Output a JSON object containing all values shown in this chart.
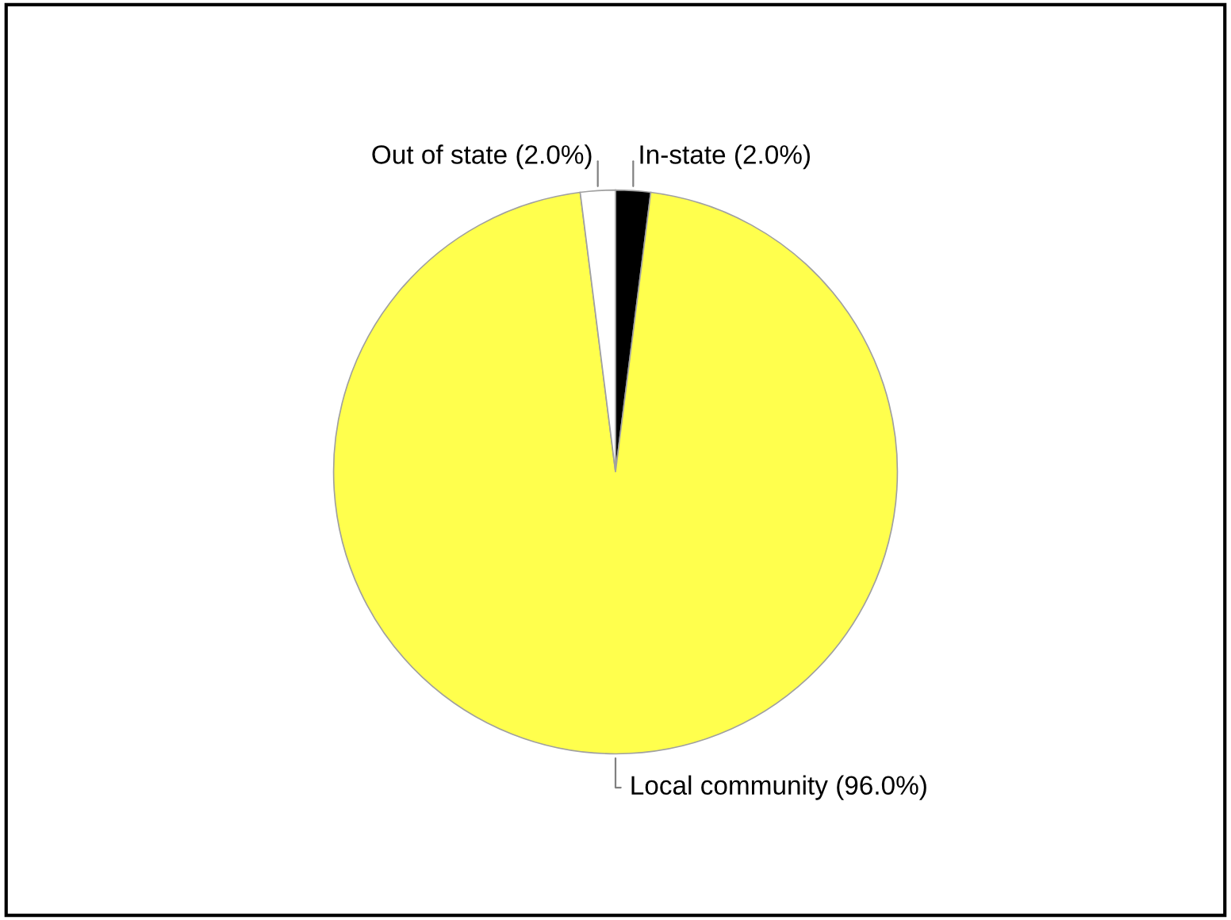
{
  "chart_data": {
    "type": "pie",
    "categories": [
      "In-state (2.0%)",
      "Local community (96.0%)",
      "Out of state (2.0%)"
    ],
    "values": [
      2,
      96,
      2
    ],
    "colors": [
      "#000000",
      "#ffff4d",
      "#ffffff"
    ],
    "legend": false
  }
}
